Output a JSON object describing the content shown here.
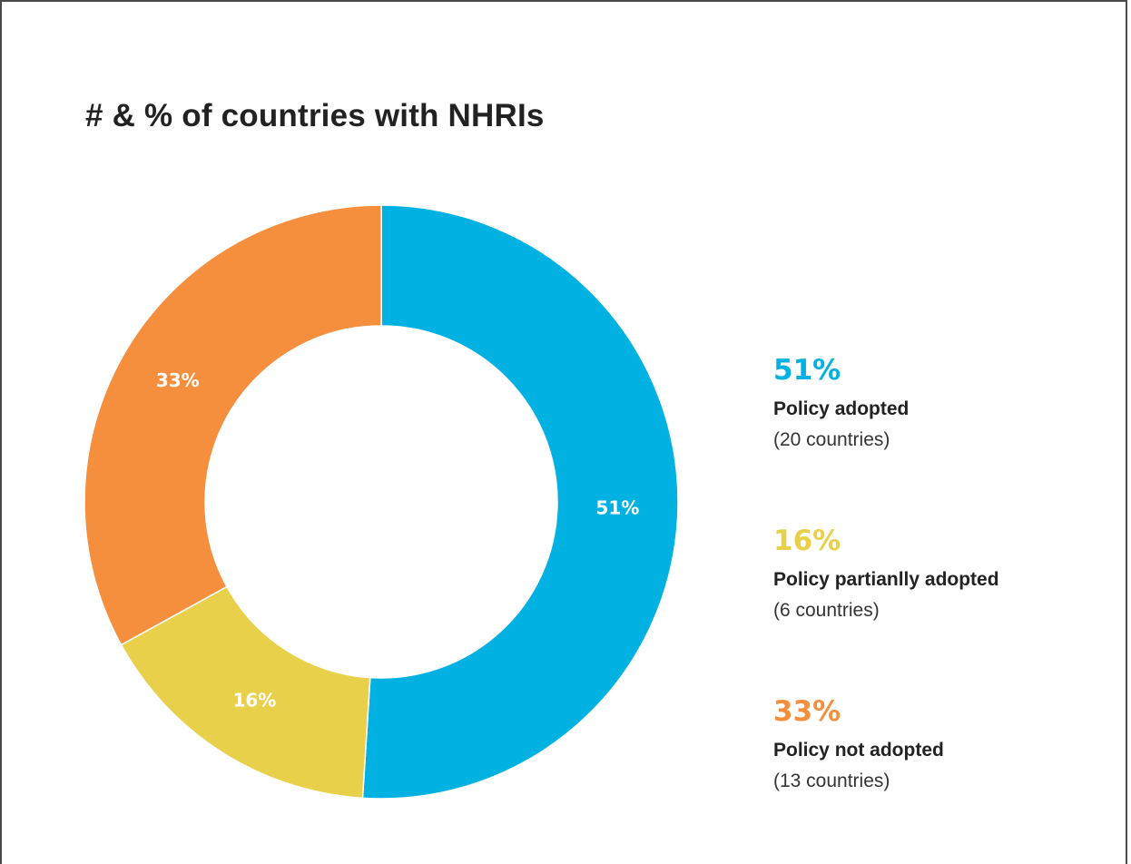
{
  "colors": {
    "adopted": "#00b1e1",
    "partial": "#e8d04a",
    "not_adopted": "#f58e3d"
  },
  "chart_data": {
    "type": "pie",
    "variant": "donut",
    "title": "# & % of countries with NHRIs",
    "slices": [
      {
        "label": "Policy adopted",
        "value": 51,
        "value_label": "51%",
        "count": "(20 countries)",
        "color": "#00b1e1"
      },
      {
        "label": "Policy partianlly adopted",
        "value": 16,
        "value_label": "16%",
        "count": "(6 countries)",
        "color": "#e8d04a"
      },
      {
        "label": "Policy not adopted",
        "value": 33,
        "value_label": "33%",
        "count": "(13 countries)",
        "color": "#f58e3d"
      }
    ],
    "legend_position": "right"
  }
}
